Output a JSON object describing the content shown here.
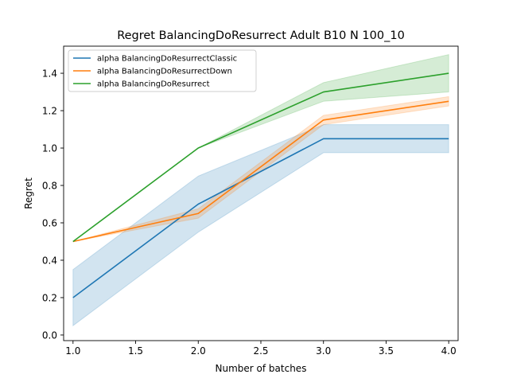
{
  "chart_data": {
    "type": "line",
    "title": "Regret BalancingDoResurrect Adult B10 N 100_10",
    "xlabel": "Number of batches",
    "ylabel": "Regret",
    "xlim": [
      0.925,
      4.075
    ],
    "ylim": [
      -0.03,
      1.545
    ],
    "xticks": [
      1.0,
      1.5,
      2.0,
      2.5,
      3.0,
      3.5,
      4.0
    ],
    "xtick_labels": [
      "1.0",
      "1.5",
      "2.0",
      "2.5",
      "3.0",
      "3.5",
      "4.0"
    ],
    "yticks": [
      0.0,
      0.2,
      0.4,
      0.6,
      0.8,
      1.0,
      1.2,
      1.4
    ],
    "ytick_labels": [
      "0.0",
      "0.2",
      "0.4",
      "0.6",
      "0.8",
      "1.0",
      "1.2",
      "1.4"
    ],
    "grid": false,
    "legend_position": "top-left",
    "series": [
      {
        "name": "alpha BalancingDoResurrectClassic",
        "color": "#1f77b4",
        "x": [
          1,
          2,
          3,
          4
        ],
        "y": [
          0.2,
          0.7,
          1.05,
          1.05
        ],
        "lower": [
          0.05,
          0.55,
          0.975,
          0.975
        ],
        "upper": [
          0.35,
          0.85,
          1.125,
          1.125
        ]
      },
      {
        "name": "alpha BalancingDoResurrectDown",
        "color": "#ff7f0e",
        "x": [
          1,
          2,
          3,
          4
        ],
        "y": [
          0.5,
          0.65,
          1.15,
          1.25
        ],
        "lower": [
          0.5,
          0.625,
          1.125,
          1.225
        ],
        "upper": [
          0.5,
          0.675,
          1.175,
          1.275
        ]
      },
      {
        "name": "alpha BalancingDoResurrect",
        "color": "#2ca02c",
        "x": [
          1,
          2,
          3,
          4
        ],
        "y": [
          0.5,
          1.0,
          1.3,
          1.4
        ],
        "lower": [
          0.5,
          1.0,
          1.25,
          1.3
        ],
        "upper": [
          0.5,
          1.0,
          1.35,
          1.5
        ]
      }
    ]
  }
}
